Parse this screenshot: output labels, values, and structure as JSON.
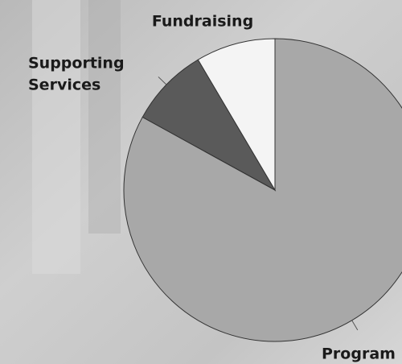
{
  "chart_data": {
    "type": "pie",
    "categories": [
      "Programs",
      "Supporting Services",
      "Fundraising"
    ],
    "category_lines": [
      [
        "Program"
      ],
      [
        "Supporting",
        "Services"
      ],
      [
        "Fundraising"
      ]
    ],
    "values": [
      83,
      8.5,
      8.5
    ],
    "colors": [
      "#a8a8a8",
      "#5a5a5a",
      "#f4f4f4"
    ]
  }
}
